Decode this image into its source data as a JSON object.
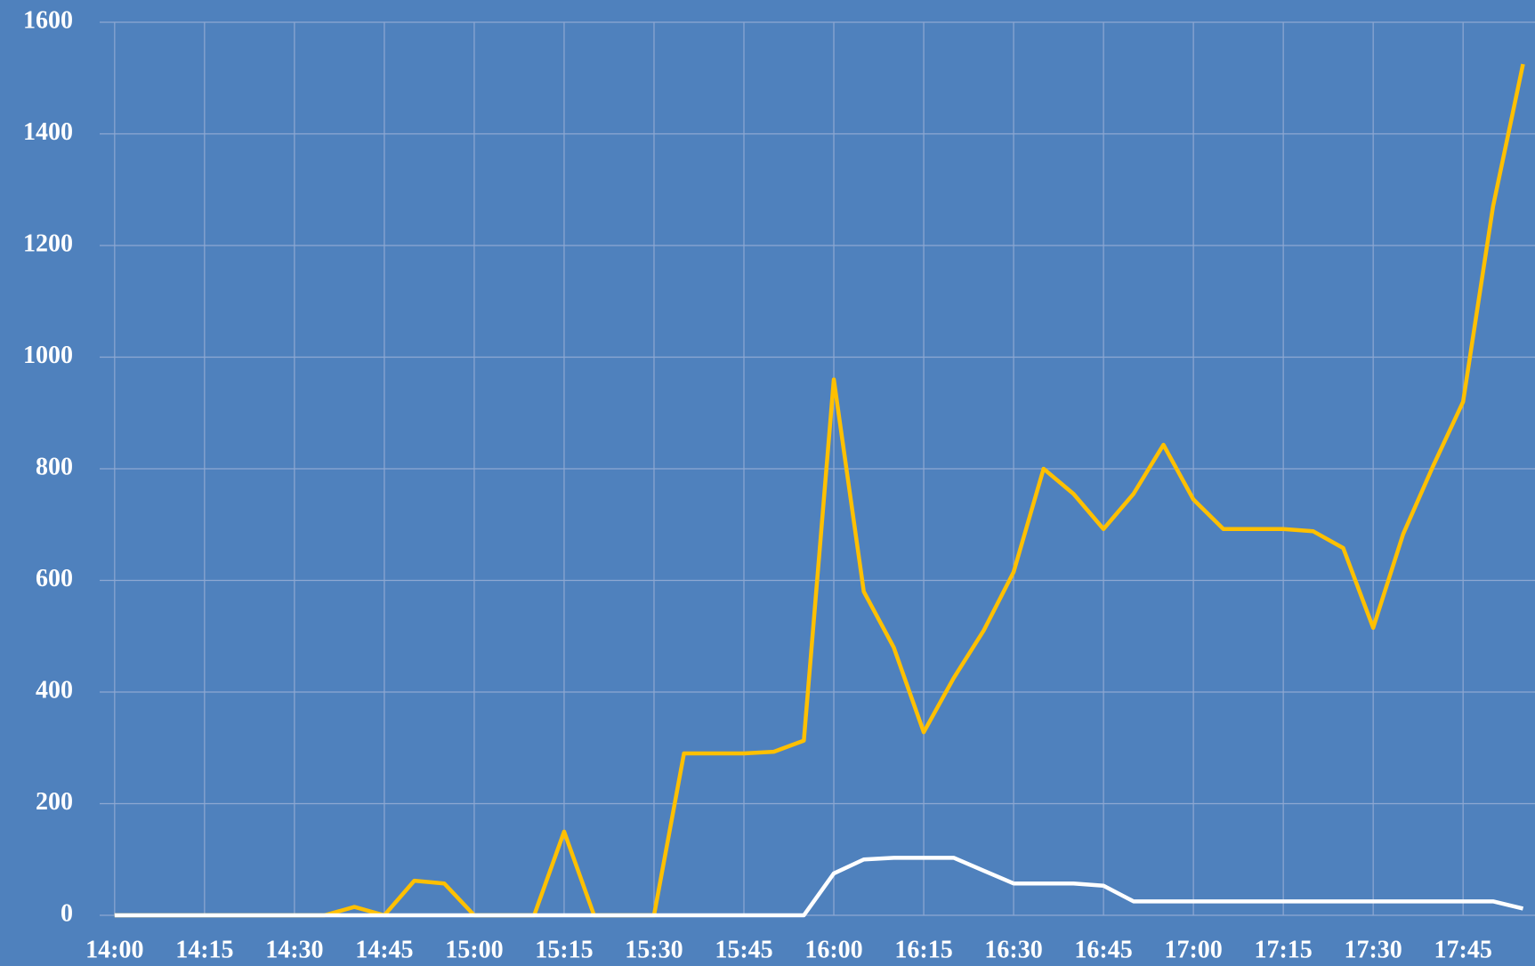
{
  "chart_data": {
    "type": "line",
    "x": [
      840,
      845,
      850,
      855,
      860,
      865,
      870,
      875,
      880,
      885,
      890,
      895,
      900,
      905,
      910,
      915,
      920,
      925,
      930,
      935,
      940,
      945,
      950,
      955,
      960,
      965,
      970,
      975,
      980,
      985,
      990,
      995,
      1000,
      1005,
      1010,
      1015,
      1020,
      1025,
      1030,
      1035,
      1040,
      1045,
      1050,
      1055,
      1060,
      1065,
      1070,
      1075
    ],
    "series": [
      {
        "color": "#ffc000",
        "values": [
          0,
          0,
          0,
          0,
          0,
          0,
          0,
          0,
          15,
          0,
          62,
          57,
          0,
          0,
          0,
          150,
          0,
          0,
          0,
          290,
          290,
          290,
          293,
          313,
          960,
          580,
          480,
          328,
          425,
          510,
          615,
          800,
          755,
          692,
          755,
          843,
          745,
          692,
          692,
          692,
          688,
          658,
          515,
          683,
          805,
          920,
          1270,
          1525
        ]
      },
      {
        "color": "#ffffff",
        "values": [
          0,
          0,
          0,
          0,
          0,
          0,
          0,
          0,
          0,
          0,
          0,
          0,
          0,
          0,
          0,
          0,
          0,
          0,
          0,
          0,
          0,
          0,
          0,
          0,
          75,
          100,
          103,
          103,
          103,
          80,
          57,
          57,
          57,
          53,
          25,
          25,
          25,
          25,
          25,
          25,
          25,
          25,
          25,
          25,
          25,
          25,
          25,
          12
        ]
      }
    ],
    "xlim": [
      837.5,
      1077
    ],
    "xticks": [
      {
        "value": 840,
        "label": "14:00"
      },
      {
        "value": 855,
        "label": "14:15"
      },
      {
        "value": 870,
        "label": "14:30"
      },
      {
        "value": 885,
        "label": "14:45"
      },
      {
        "value": 900,
        "label": "15:00"
      },
      {
        "value": 915,
        "label": "15:15"
      },
      {
        "value": 930,
        "label": "15:30"
      },
      {
        "value": 945,
        "label": "15:45"
      },
      {
        "value": 960,
        "label": "16:00"
      },
      {
        "value": 975,
        "label": "16:15"
      },
      {
        "value": 990,
        "label": "16:30"
      },
      {
        "value": 1005,
        "label": "16:45"
      },
      {
        "value": 1020,
        "label": "17:00"
      },
      {
        "value": 1035,
        "label": "17:15"
      },
      {
        "value": 1050,
        "label": "17:30"
      },
      {
        "value": 1065,
        "label": "17:45"
      }
    ],
    "ylim": [
      0,
      1600
    ],
    "yticks": [
      0,
      200,
      400,
      600,
      800,
      1000,
      1200,
      1400,
      1600
    ],
    "grid": true
  }
}
